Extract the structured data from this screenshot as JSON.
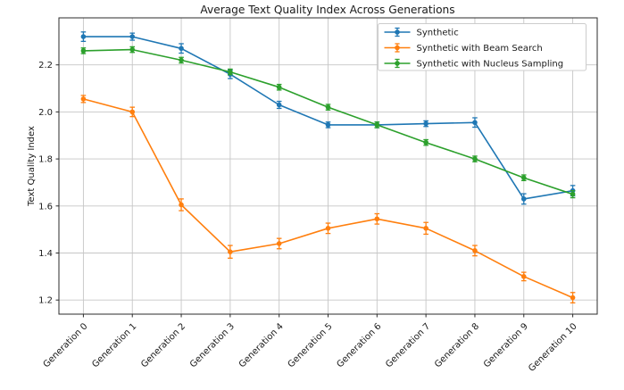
{
  "chart_data": {
    "type": "line",
    "title": "Average Text Quality Index Across Generations",
    "xlabel": "",
    "ylabel": "Text Quality Index",
    "categories": [
      "Generation 0",
      "Generation 1",
      "Generation 2",
      "Generation 3",
      "Generation 4",
      "Generation 5",
      "Generation 6",
      "Generation 7",
      "Generation 8",
      "Generation 9",
      "Generation 10"
    ],
    "x": [
      0,
      1,
      2,
      3,
      4,
      5,
      6,
      7,
      8,
      9,
      10
    ],
    "series": [
      {
        "name": "Synthetic",
        "color": "#1f77b4",
        "marker": "circle",
        "values": [
          2.32,
          2.32,
          2.27,
          2.16,
          2.03,
          1.945,
          1.945,
          1.95,
          1.955,
          1.63,
          1.665
        ],
        "errors": [
          0.02,
          0.015,
          0.02,
          0.018,
          0.015,
          0.012,
          0.012,
          0.012,
          0.02,
          0.022,
          0.022
        ]
      },
      {
        "name": "Synthetic with Beam Search",
        "color": "#ff7f0e",
        "marker": "circle",
        "values": [
          2.055,
          2.0,
          1.605,
          1.405,
          1.44,
          1.505,
          1.545,
          1.505,
          1.41,
          1.3,
          1.21
        ],
        "errors": [
          0.015,
          0.02,
          0.025,
          0.027,
          0.022,
          0.022,
          0.022,
          0.025,
          0.022,
          0.018,
          0.022
        ]
      },
      {
        "name": "Synthetic with Nucleus Sampling",
        "color": "#2ca02c",
        "marker": "circle",
        "values": [
          2.26,
          2.265,
          2.22,
          2.17,
          2.105,
          2.02,
          1.945,
          1.87,
          1.8,
          1.72,
          1.65
        ],
        "errors": [
          0.012,
          0.012,
          0.012,
          0.012,
          0.012,
          0.012,
          0.012,
          0.012,
          0.012,
          0.012,
          0.015
        ]
      }
    ],
    "yticks": [
      "1.2",
      "1.4",
      "1.6",
      "1.8",
      "2.0",
      "2.2"
    ],
    "ytick_values": [
      1.2,
      1.4,
      1.6,
      1.8,
      2.0,
      2.2
    ],
    "ylim": [
      1.14,
      2.4
    ],
    "xlim": [
      -0.5,
      10.5
    ],
    "grid": true,
    "legend_position": "upper right",
    "error_bars": true,
    "background": "#ffffff"
  }
}
